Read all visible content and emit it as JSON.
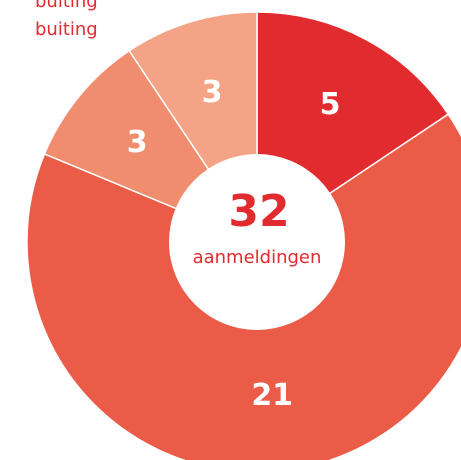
{
  "chart_data": {
    "type": "donut",
    "annotations": [
      "buiting",
      "buiting"
    ],
    "total": 32,
    "total_label": "aanmeldingen",
    "values": [
      5,
      21,
      3,
      3
    ],
    "colors": [
      "#e22b2f",
      "#ea5c48",
      "#f08d6e",
      "#f4a386"
    ],
    "text_color": "#e22b2f"
  }
}
